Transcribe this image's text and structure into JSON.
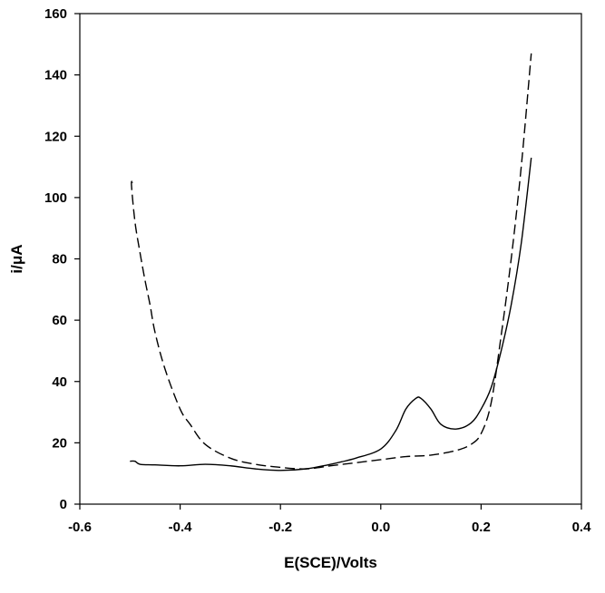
{
  "chart_data": {
    "type": "line",
    "title": "",
    "xlabel": "E(SCE)/Volts",
    "ylabel": "i/μA",
    "xlim": [
      -0.6,
      0.4
    ],
    "ylim": [
      0,
      160
    ],
    "grid": false,
    "legend": "none",
    "x_ticks": [
      -0.6,
      -0.4,
      -0.2,
      0.0,
      0.2,
      0.4
    ],
    "x_tick_labels": [
      "-0.6",
      "-0.4",
      "-0.2",
      "0.0",
      "0.2",
      "0.4"
    ],
    "y_ticks": [
      0,
      20,
      40,
      60,
      80,
      100,
      120,
      140,
      160
    ],
    "y_tick_labels": [
      "0",
      "20",
      "40",
      "60",
      "80",
      "100",
      "120",
      "140",
      "160"
    ],
    "colors": {
      "line": "#000000",
      "axis": "#000000"
    },
    "series": [
      {
        "name": "solid",
        "style": "solid",
        "x": [
          -0.5,
          -0.49,
          -0.48,
          -0.45,
          -0.4,
          -0.35,
          -0.3,
          -0.25,
          -0.2,
          -0.15,
          -0.1,
          -0.05,
          0.0,
          0.03,
          0.05,
          0.07,
          0.08,
          0.1,
          0.12,
          0.15,
          0.18,
          0.2,
          0.22,
          0.24,
          0.26,
          0.28,
          0.3
        ],
        "y": [
          14,
          14,
          13,
          12.8,
          12.5,
          13,
          12.5,
          11.5,
          11,
          11.5,
          13,
          15,
          18,
          24,
          31,
          34.5,
          34.5,
          31,
          26,
          24.5,
          26.5,
          31,
          38,
          50,
          65,
          85,
          113
        ]
      },
      {
        "name": "dashed",
        "style": "dashed",
        "x": [
          -0.495,
          -0.497,
          -0.49,
          -0.48,
          -0.47,
          -0.46,
          -0.45,
          -0.43,
          -0.4,
          -0.38,
          -0.35,
          -0.3,
          -0.25,
          -0.2,
          -0.15,
          -0.1,
          -0.05,
          0.0,
          0.05,
          0.1,
          0.15,
          0.18,
          0.2,
          0.22,
          0.24,
          0.26,
          0.28,
          0.3
        ],
        "y": [
          105,
          104,
          92,
          82,
          73,
          65,
          56,
          44,
          31,
          26,
          19.5,
          15,
          13,
          12,
          11.5,
          12.5,
          13.5,
          14.5,
          15.5,
          16,
          17.5,
          19.5,
          23,
          33,
          55,
          80,
          110,
          147
        ]
      }
    ]
  }
}
